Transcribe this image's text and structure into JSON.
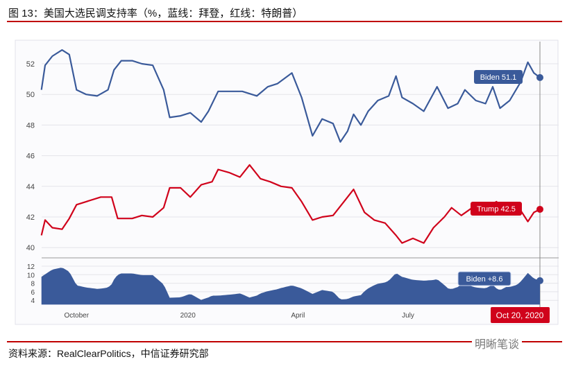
{
  "title": "图 13：美国大选民调支持率（%，蓝线：拜登，红线：特朗普）",
  "source": "资料来源：RealClearPolitics，中信证券研究部",
  "watermark": "明晰笔谈",
  "colors": {
    "biden": "#3a5a9a",
    "trump": "#d0021b",
    "accent": "#c00000"
  },
  "chart_data": {
    "type": "line",
    "x_unit": "days since 2019-09-01",
    "main": {
      "ylim": [
        40,
        52.6
      ],
      "yticks": [
        40,
        42,
        44,
        46,
        48,
        50,
        52
      ]
    },
    "spread": {
      "ylim": [
        3,
        13
      ],
      "yticks": [
        4,
        6,
        8,
        10,
        12
      ]
    },
    "xticks": [
      {
        "day": 30,
        "label": "October"
      },
      {
        "day": 122,
        "label": "2020"
      },
      {
        "day": 213,
        "label": "April"
      },
      {
        "day": 304,
        "label": "July"
      }
    ],
    "series": [
      {
        "name": "Biden",
        "x": [
          1,
          4,
          10,
          18,
          24,
          30,
          38,
          47,
          56,
          61,
          67,
          76,
          84,
          93,
          102,
          107,
          116,
          124,
          133,
          139,
          147,
          156,
          167,
          179,
          188,
          196,
          208,
          216,
          225,
          233,
          242,
          248,
          254,
          259,
          265,
          271,
          279,
          288,
          294,
          299,
          308,
          317,
          328,
          337,
          345,
          351,
          360,
          368,
          374,
          380,
          388,
          397,
          403,
          408,
          413
        ],
        "values": [
          50.3,
          51.9,
          52.5,
          52.9,
          52.6,
          50.3,
          50.0,
          49.9,
          50.3,
          51.6,
          52.2,
          52.2,
          52.0,
          51.9,
          50.3,
          48.5,
          48.6,
          48.8,
          48.2,
          48.9,
          50.2,
          50.2,
          50.2,
          49.9,
          50.5,
          50.7,
          51.4,
          49.8,
          47.3,
          48.4,
          48.1,
          46.9,
          47.6,
          48.7,
          48.0,
          48.9,
          49.6,
          49.9,
          51.2,
          49.8,
          49.4,
          48.9,
          50.5,
          49.1,
          49.4,
          50.3,
          49.6,
          49.4,
          50.5,
          49.1,
          49.6,
          50.8,
          52.1,
          51.4,
          51.1
        ]
      },
      {
        "name": "Trump",
        "x": [
          1,
          4,
          10,
          18,
          24,
          30,
          38,
          50,
          59,
          64,
          76,
          84,
          93,
          102,
          107,
          116,
          124,
          133,
          142,
          147,
          156,
          165,
          173,
          182,
          190,
          199,
          208,
          216,
          225,
          233,
          242,
          251,
          259,
          268,
          276,
          285,
          294,
          299,
          308,
          317,
          325,
          334,
          340,
          348,
          357,
          368,
          377,
          385,
          394,
          403,
          408,
          413
        ],
        "values": [
          40.8,
          41.8,
          41.3,
          41.2,
          41.9,
          42.8,
          43.0,
          43.3,
          43.3,
          41.9,
          41.9,
          42.1,
          42.0,
          42.6,
          43.9,
          43.9,
          43.3,
          44.1,
          44.3,
          45.1,
          44.9,
          44.6,
          45.4,
          44.5,
          44.3,
          44.0,
          43.9,
          43.0,
          41.8,
          42.0,
          42.1,
          43.0,
          43.8,
          42.3,
          41.8,
          41.6,
          40.8,
          40.3,
          40.6,
          40.3,
          41.3,
          42.0,
          42.6,
          42.1,
          42.6,
          42.6,
          43.0,
          42.3,
          42.8,
          41.7,
          42.3,
          42.5
        ]
      }
    ],
    "labels": {
      "biden": "Biden 51.1",
      "trump": "Trump 42.5",
      "spread": "Biden +8.6",
      "date": "Oct 20, 2020"
    }
  }
}
